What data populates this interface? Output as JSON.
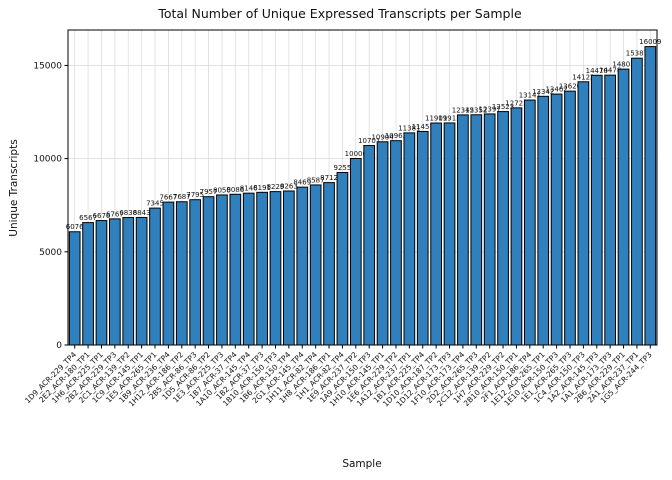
{
  "chart_data": {
    "type": "bar",
    "title": "Total Number of Unique Expressed Transcripts per Sample",
    "xlabel": "Sample",
    "ylabel": "Unique Transcripts",
    "ylim": [
      0,
      16900
    ],
    "yticks": [
      0,
      5000,
      10000,
      15000
    ],
    "grid": true,
    "bar_color": "#3080bd",
    "edge_color": "#000000",
    "grid_color": "#dcdcdc",
    "categories": [
      "1D9_ACR-229_TP4",
      "2E2_ACR-180_TP1",
      "1H6_ACR-225_TP1",
      "2B2_ACR-229_TP3",
      "2C1_ACR-139_TP2",
      "1C9_ACR-145_TP1",
      "1E5_ACR-265_TP1",
      "1B9_ACR-236_TP4",
      "1H12_ACR-186_TP2",
      "2B5_ACR-86_TP3",
      "1D5_ACR-86_TP2",
      "1E3_ACR-225_TP3",
      "1B7_ACR-37_TP4",
      "1A10_ACR-145_TP4",
      "1B2_ACR-37_TP3",
      "1B10_ACR-150_TP3",
      "1B6_ACR-150_TP4",
      "2G1_ACR-145_TP4",
      "1H11_ACR-82_TP4",
      "1H8_ACR-186_TP1",
      "1H1_ACR-82_TP4",
      "1E9_ACR-237_TP2",
      "1A9_ACR-150_TP3",
      "1H10_ACR-145_TP1",
      "1E6_ACR-229_TP2",
      "1A12_ACR-237_TP1",
      "1B1_ACR-225_TP4",
      "1D10_ACR-187_TP2",
      "1D12_ACR-173_TP3",
      "1F10_ACR-173_TP4",
      "2D2_ACR-265_TP3",
      "2C12_ACR-139_TP2",
      "1H7_ACR-229_TP2",
      "2B10_ACR-150_TP1",
      "2F1_ACR-186_TP4",
      "1E12_ACR-265_TP1",
      "1E10_ACR-150_TP3",
      "1E1_ACR-265_TP3",
      "1C4_ACR-150_TP3",
      "1A2_ACR-145_TP3",
      "1A1_ACR-173_TP3",
      "2B6_ACR-229_TP1",
      "2A1_ACR-237_TP1",
      "1G5_ACR-244_TP3"
    ],
    "values": [
      6076,
      6567,
      6676,
      6767,
      6838,
      6843,
      7345,
      7667,
      7687,
      7795,
      7957,
      8050,
      8086,
      8146,
      8191,
      8229,
      8263,
      8469,
      8587,
      8712,
      9255,
      10006,
      10701,
      10904,
      10962,
      11381,
      11457,
      11909,
      11913,
      12345,
      12352,
      12397,
      12523,
      12723,
      13141,
      13342,
      13462,
      13620,
      14122,
      14470,
      14478,
      14801,
      15387,
      16009
    ]
  }
}
